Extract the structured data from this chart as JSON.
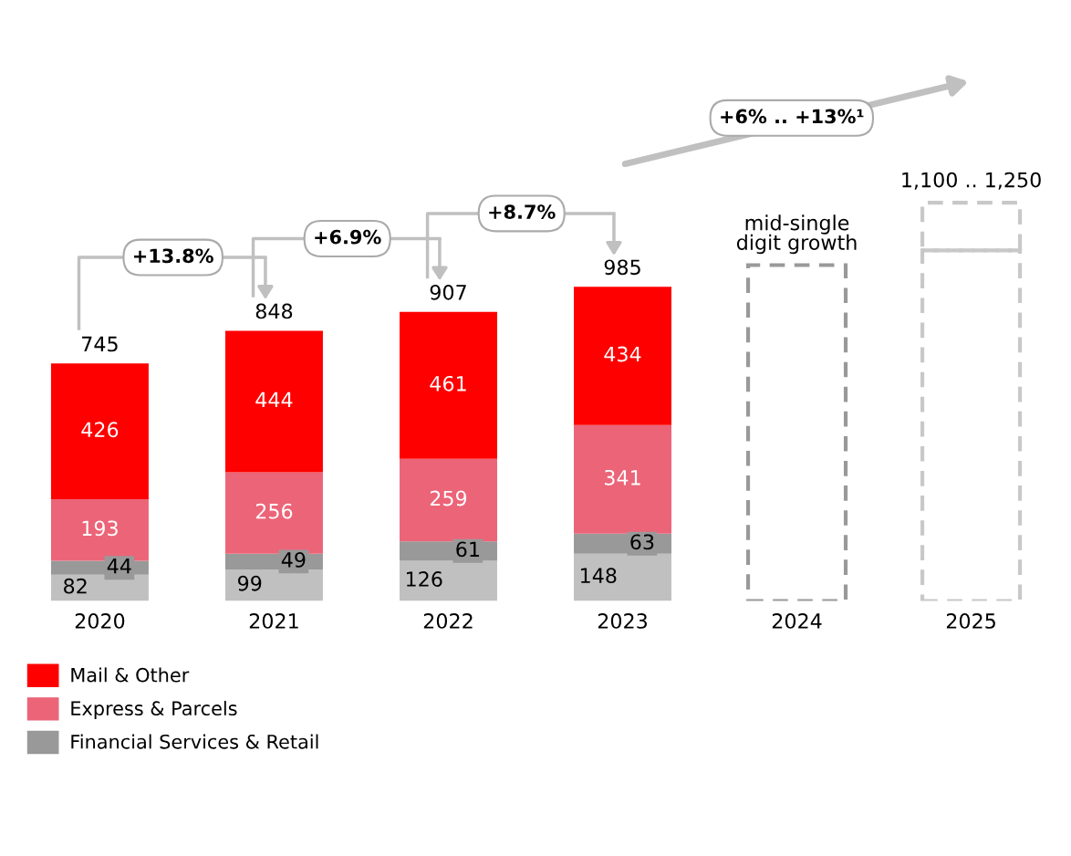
{
  "chart_data": {
    "type": "bar",
    "stacked": true,
    "legend": "bottom left",
    "tick_labels": "x",
    "categories": [
      "2020",
      "2021",
      "2022",
      "2023",
      "2024",
      "2025"
    ],
    "series": [
      {
        "color": "#c0c0c0",
        "values": [
          82,
          99,
          126,
          148,
          null,
          null
        ],
        "value_labels": [
          "82",
          "99",
          "126",
          "148",
          null,
          null
        ]
      },
      {
        "name": "Financial Services & Retail",
        "color": "#999999",
        "values": [
          44,
          49,
          61,
          63,
          null,
          null
        ],
        "value_labels": [
          "44",
          "49",
          "61",
          "63",
          null,
          null
        ]
      },
      {
        "name": "Express & Parcels",
        "color": "#ec6478",
        "values": [
          193,
          256,
          259,
          341,
          null,
          null
        ],
        "value_labels": [
          "193",
          "256",
          "259",
          "341",
          null,
          null
        ]
      },
      {
        "name": "Mail & Other",
        "color": "#ff0000",
        "values": [
          426,
          444,
          461,
          434,
          null,
          null
        ],
        "value_labels": [
          "426",
          "444",
          "461",
          "434",
          null,
          null
        ]
      },
      {
        "line_style": "dashed",
        "colors": [
          "#999999",
          "#999999",
          "#999999",
          "#999999",
          "#999999",
          "#c8c8c8"
        ],
        "values": [
          null,
          null,
          null,
          null,
          1054,
          1100
        ]
      },
      {
        "line_style": "dashed",
        "colors": [
          "#c8c8c8",
          "#c8c8c8",
          "#c8c8c8",
          "#c8c8c8",
          "#c8c8c8",
          "#c8c8c8"
        ],
        "values": [
          null,
          null,
          null,
          null,
          null,
          150
        ]
      }
    ],
    "totals": [
      "745",
      "848",
      "907",
      "985",
      null,
      null
    ],
    "annotations": [
      "+13.8%",
      "+6.9%",
      "+8.7%",
      "+6% .. +13%¹",
      "mid-single\ndigit growth",
      "1,100 .. 1,250"
    ]
  }
}
